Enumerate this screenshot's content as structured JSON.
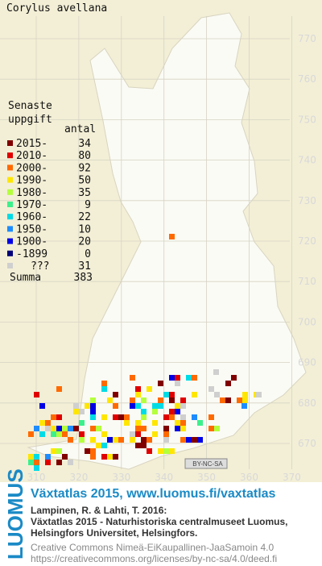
{
  "title": "Corylus avellana",
  "legend": {
    "heading_1": "Senaste",
    "heading_2": "uppgift",
    "count_header": "antal",
    "items": [
      {
        "label": "2015-",
        "count": 34,
        "color": "#800000"
      },
      {
        "label": "2010-",
        "count": 80,
        "color": "#e00000"
      },
      {
        "label": "2000-",
        "count": 92,
        "color": "#ff6a00"
      },
      {
        "label": "1990-",
        "count": 50,
        "color": "#ffe600"
      },
      {
        "label": "1980-",
        "count": 35,
        "color": "#b4ff3c"
      },
      {
        "label": "1970-",
        "count": 9,
        "color": "#3cf08c"
      },
      {
        "label": "1960-",
        "count": 22,
        "color": "#00dce6"
      },
      {
        "label": "1950-",
        "count": 10,
        "color": "#1e8cff"
      },
      {
        "label": "1900-",
        "count": 20,
        "color": "#0000e6"
      },
      {
        "label": "-1899",
        "count": 0,
        "color": "#000078"
      },
      {
        "label": "???",
        "count": 31,
        "color": "#cfcfcf"
      }
    ],
    "total_label": "Summa",
    "total": 383
  },
  "grid": {
    "y_labels": [
      770,
      760,
      750,
      740,
      730,
      720,
      710,
      700,
      690,
      680,
      670
    ],
    "x_labels": [
      310,
      320,
      330,
      340,
      350,
      360,
      370
    ]
  },
  "license_badge": "BY-NC-SA",
  "footer": {
    "brand": "LUOMUS",
    "site": "Växtatlas 2015, www.luomus.fi/vaxtatlas",
    "citation": [
      "Lampinen, R. & Lahti, T. 2016:",
      "Växtatlas 2015 - Naturhistoriska centralmuseet Luomus,",
      "Helsingfors Universitet, Helsingfors."
    ],
    "license": "Creative Commons Nimeä-EiKaupallinen-JaaSamoin 4.0",
    "url": "https://creativecommons.org/licenses/by-nc-sa/4.0/deed.fi"
  }
}
